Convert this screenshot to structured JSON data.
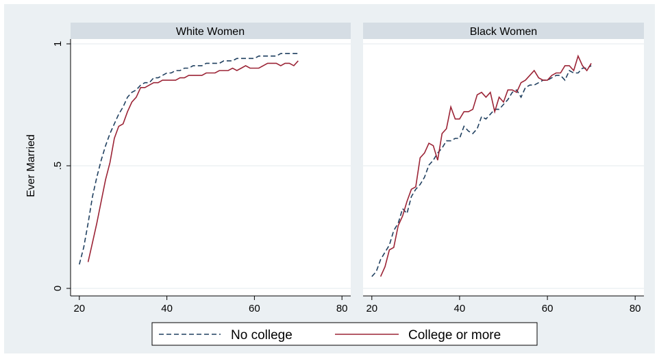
{
  "chart_data": {
    "type": "line",
    "ylabel": "Ever Married",
    "x_ticks": [
      20,
      40,
      60,
      80
    ],
    "y_ticks": [
      0,
      0.5,
      1
    ],
    "y_tick_labels": [
      "0",
      ".5",
      "1"
    ],
    "xlim": [
      18,
      82
    ],
    "ylim": [
      -0.03,
      1.03
    ],
    "grid": true,
    "legend_position": "bottom",
    "series_styles": [
      {
        "name": "No college",
        "color": "#1f3f5f",
        "dash": "dashed"
      },
      {
        "name": "College or more",
        "color": "#9b2335",
        "dash": "solid"
      }
    ],
    "panels": [
      {
        "title": "White Women",
        "series": [
          {
            "name": "No college",
            "x": [
              20,
              21,
              22,
              23,
              24,
              25,
              26,
              27,
              28,
              29,
              30,
              31,
              32,
              33,
              34,
              35,
              36,
              37,
              38,
              39,
              40,
              41,
              42,
              43,
              44,
              45,
              46,
              47,
              48,
              49,
              50,
              51,
              52,
              53,
              54,
              55,
              56,
              57,
              58,
              59,
              60,
              61,
              62,
              63,
              64,
              65,
              66,
              67,
              68,
              69,
              70
            ],
            "y": [
              0.1,
              0.17,
              0.27,
              0.38,
              0.46,
              0.53,
              0.59,
              0.64,
              0.68,
              0.72,
              0.75,
              0.79,
              0.81,
              0.82,
              0.84,
              0.85,
              0.85,
              0.87,
              0.87,
              0.88,
              0.89,
              0.89,
              0.9,
              0.9,
              0.91,
              0.91,
              0.92,
              0.92,
              0.92,
              0.93,
              0.93,
              0.93,
              0.93,
              0.94,
              0.94,
              0.94,
              0.95,
              0.95,
              0.95,
              0.95,
              0.95,
              0.96,
              0.96,
              0.96,
              0.96,
              0.96,
              0.97,
              0.97,
              0.97,
              0.97,
              0.97
            ]
          },
          {
            "name": "College or more",
            "x": [
              22,
              23,
              24,
              25,
              26,
              27,
              28,
              29,
              30,
              31,
              32,
              33,
              34,
              35,
              36,
              37,
              38,
              39,
              40,
              41,
              42,
              43,
              44,
              45,
              46,
              47,
              48,
              49,
              50,
              51,
              52,
              53,
              54,
              55,
              56,
              57,
              58,
              59,
              60,
              61,
              62,
              63,
              64,
              65,
              66,
              67,
              68,
              69,
              70
            ],
            "y": [
              0.11,
              0.19,
              0.27,
              0.36,
              0.45,
              0.52,
              0.62,
              0.67,
              0.68,
              0.73,
              0.77,
              0.79,
              0.83,
              0.83,
              0.84,
              0.85,
              0.85,
              0.86,
              0.86,
              0.86,
              0.86,
              0.87,
              0.87,
              0.88,
              0.88,
              0.88,
              0.88,
              0.89,
              0.89,
              0.89,
              0.9,
              0.9,
              0.9,
              0.91,
              0.9,
              0.91,
              0.92,
              0.91,
              0.91,
              0.91,
              0.92,
              0.93,
              0.93,
              0.93,
              0.92,
              0.93,
              0.93,
              0.92,
              0.94
            ]
          }
        ]
      },
      {
        "title": "Black Women",
        "series": [
          {
            "name": "No college",
            "x": [
              20,
              21,
              22,
              23,
              24,
              25,
              26,
              27,
              28,
              29,
              30,
              31,
              32,
              33,
              34,
              35,
              36,
              37,
              38,
              39,
              40,
              41,
              42,
              43,
              44,
              45,
              46,
              47,
              48,
              49,
              50,
              51,
              52,
              53,
              54,
              55,
              56,
              57,
              58,
              59,
              60,
              61,
              62,
              63,
              64,
              65,
              66,
              67,
              68,
              69,
              70
            ],
            "y": [
              0.05,
              0.07,
              0.12,
              0.15,
              0.18,
              0.24,
              0.27,
              0.33,
              0.31,
              0.38,
              0.41,
              0.43,
              0.46,
              0.51,
              0.53,
              0.56,
              0.58,
              0.61,
              0.61,
              0.62,
              0.62,
              0.67,
              0.65,
              0.64,
              0.66,
              0.71,
              0.7,
              0.72,
              0.74,
              0.74,
              0.76,
              0.78,
              0.81,
              0.82,
              0.79,
              0.83,
              0.84,
              0.84,
              0.85,
              0.86,
              0.86,
              0.87,
              0.88,
              0.88,
              0.86,
              0.9,
              0.89,
              0.89,
              0.91,
              0.91,
              0.92
            ]
          },
          {
            "name": "College or more",
            "x": [
              22,
              23,
              24,
              25,
              26,
              27,
              28,
              29,
              30,
              31,
              32,
              33,
              34,
              35,
              36,
              37,
              38,
              39,
              40,
              41,
              42,
              43,
              44,
              45,
              46,
              47,
              48,
              49,
              50,
              51,
              52,
              53,
              54,
              55,
              56,
              57,
              58,
              59,
              60,
              61,
              62,
              63,
              64,
              65,
              66,
              67,
              68,
              69,
              70
            ],
            "y": [
              0.05,
              0.09,
              0.16,
              0.17,
              0.26,
              0.3,
              0.36,
              0.41,
              0.42,
              0.54,
              0.56,
              0.6,
              0.59,
              0.53,
              0.64,
              0.66,
              0.75,
              0.7,
              0.7,
              0.73,
              0.73,
              0.74,
              0.8,
              0.81,
              0.79,
              0.81,
              0.73,
              0.79,
              0.77,
              0.82,
              0.82,
              0.81,
              0.85,
              0.86,
              0.88,
              0.9,
              0.87,
              0.86,
              0.86,
              0.88,
              0.89,
              0.89,
              0.92,
              0.92,
              0.9,
              0.96,
              0.92,
              0.9,
              0.93
            ]
          }
        ]
      }
    ]
  }
}
